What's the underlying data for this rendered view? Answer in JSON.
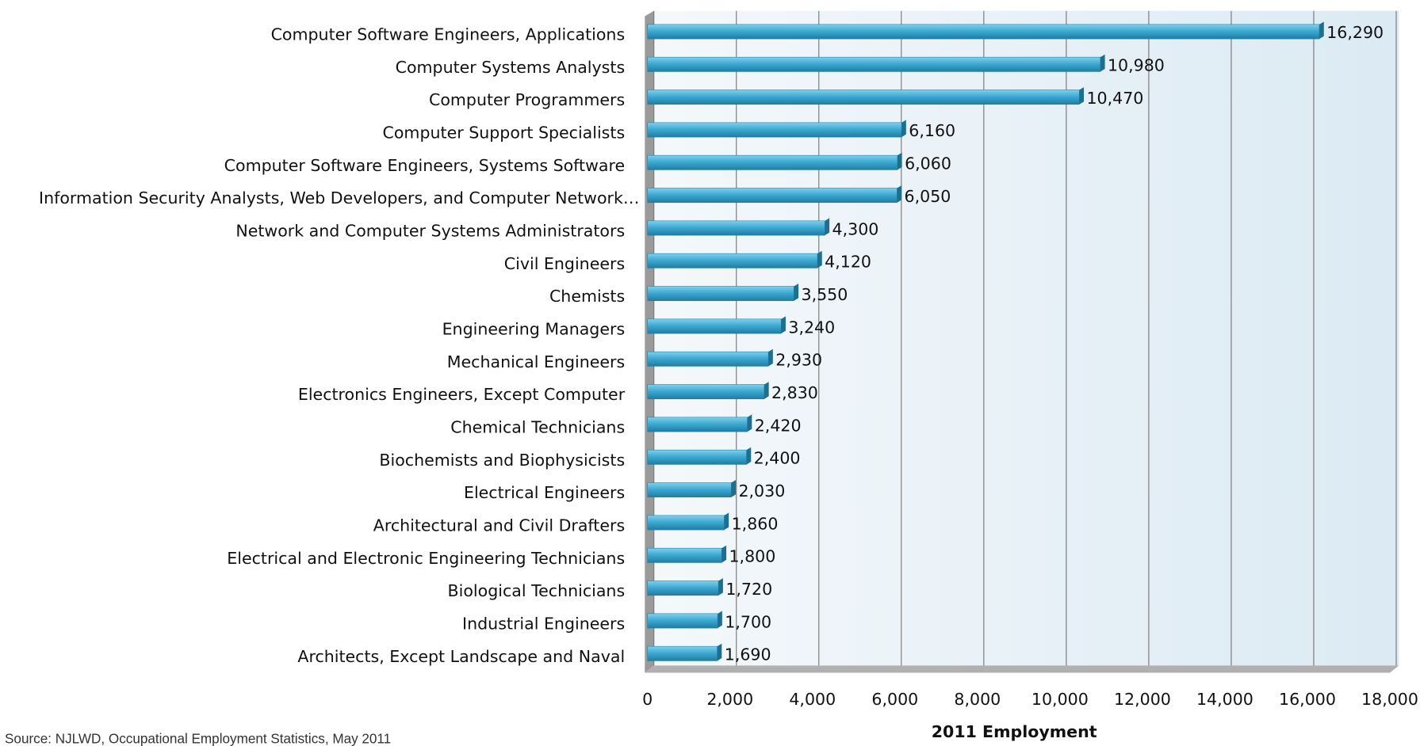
{
  "chart_data": {
    "type": "bar",
    "orientation": "horizontal",
    "categories": [
      "Computer Software Engineers, Applications",
      "Computer Systems Analysts",
      "Computer Programmers",
      "Computer Support Specialists",
      "Computer Software Engineers, Systems Software",
      "Information Security Analysts, Web Developers, and Computer Network…",
      "Network and Computer Systems Administrators",
      "Civil Engineers",
      "Chemists",
      "Engineering Managers",
      "Mechanical Engineers",
      "Electronics Engineers, Except Computer",
      "Chemical Technicians",
      "Biochemists and Biophysicists",
      "Electrical Engineers",
      "Architectural and Civil Drafters",
      "Electrical and Electronic Engineering Technicians",
      "Biological Technicians",
      "Industrial Engineers",
      "Architects, Except Landscape and Naval"
    ],
    "values": [
      16290,
      10980,
      10470,
      6160,
      6060,
      6050,
      4300,
      4120,
      3550,
      3240,
      2930,
      2830,
      2420,
      2400,
      2030,
      1860,
      1800,
      1720,
      1700,
      1690
    ],
    "value_labels": [
      "16,290",
      "10,980",
      "10,470",
      "6,160",
      "6,060",
      "6,050",
      "4,300",
      "4,120",
      "3,550",
      "3,240",
      "2,930",
      "2,830",
      "2,420",
      "2,400",
      "2,030",
      "1,860",
      "1,800",
      "1,720",
      "1,700",
      "1,690"
    ],
    "color": "#3aa6cf",
    "xlabel": "2011 Employment",
    "xlim": [
      0,
      18000
    ],
    "xticks": [
      0,
      {
        "value": 2000,
        "label": "2,000"
      },
      {
        "value": 4000,
        "label": "4,000"
      },
      {
        "value": 6000,
        "label": "6,000"
      },
      {
        "value": 8000,
        "label": "8,000"
      },
      {
        "value": 10000,
        "label": "10,000"
      },
      {
        "value": 12000,
        "label": "12,000"
      },
      {
        "value": 14000,
        "label": "14,000"
      },
      {
        "value": 16000,
        "label": "16,000"
      },
      {
        "value": 18000,
        "label": "18,000"
      }
    ],
    "grid": true,
    "source": "Source: NJLWD, Occupational Employment Statistics, May 2011"
  }
}
